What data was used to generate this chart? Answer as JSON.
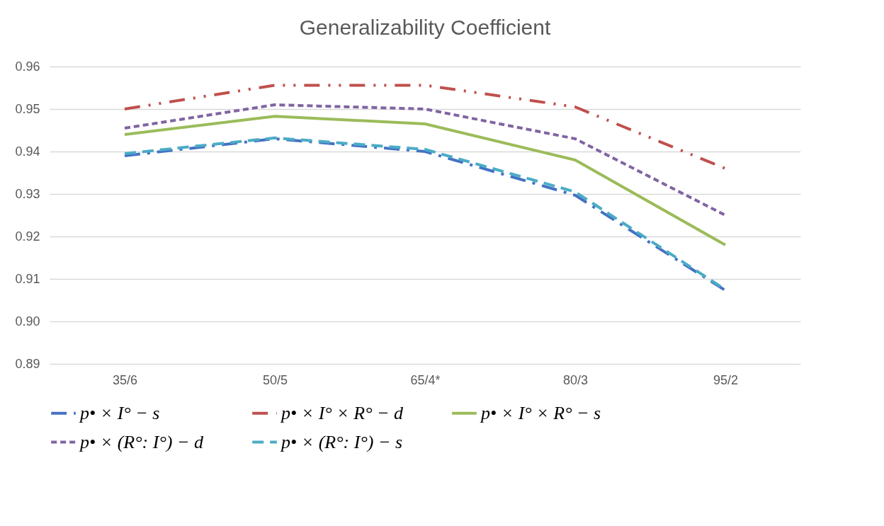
{
  "chart_data": {
    "type": "line",
    "title": "Generalizability Coefficient",
    "categories": [
      "35/6",
      "50/5",
      "65/4*",
      "80/3",
      "95/2"
    ],
    "series": [
      {
        "name": "p• × I° − s",
        "color": "#4472c4",
        "line_style": "dashed",
        "values": [
          0.939,
          0.943,
          0.94,
          0.9297,
          0.9073
        ]
      },
      {
        "name": "p• × I° × R° − d",
        "color": "#c0504d",
        "line_style": "dashed",
        "values": [
          0.95,
          0.9556,
          0.9556,
          0.9505,
          0.936
        ]
      },
      {
        "name": "p• × I° × R° − s",
        "color": "#9bbb59",
        "line_style": "solid",
        "values": [
          0.944,
          0.9483,
          0.9465,
          0.938,
          0.918
        ]
      },
      {
        "name": "p• × (R°: I°) − d",
        "color": "#8064a2",
        "line_style": "dotted",
        "values": [
          0.9455,
          0.951,
          0.95,
          0.943,
          0.925
        ]
      },
      {
        "name": "p• × (R°: I°) − s",
        "color": "#4bacc6",
        "line_style": "dashed",
        "values": [
          0.9395,
          0.9432,
          0.9405,
          0.9305,
          0.9075
        ]
      }
    ],
    "ylim": [
      0.89,
      0.96
    ],
    "yticks": [
      {
        "value": 0.89,
        "label": "0.89"
      },
      {
        "value": 0.9,
        "label": "0.90"
      },
      {
        "value": 0.91,
        "label": "0.91"
      },
      {
        "value": 0.92,
        "label": "0.92"
      },
      {
        "value": 0.93,
        "label": "0.93"
      },
      {
        "value": 0.94,
        "label": "0.94"
      },
      {
        "value": 0.95,
        "label": "0.95"
      },
      {
        "value": 0.96,
        "label": "0.96"
      }
    ],
    "grid": "y",
    "legend": "bottom"
  }
}
